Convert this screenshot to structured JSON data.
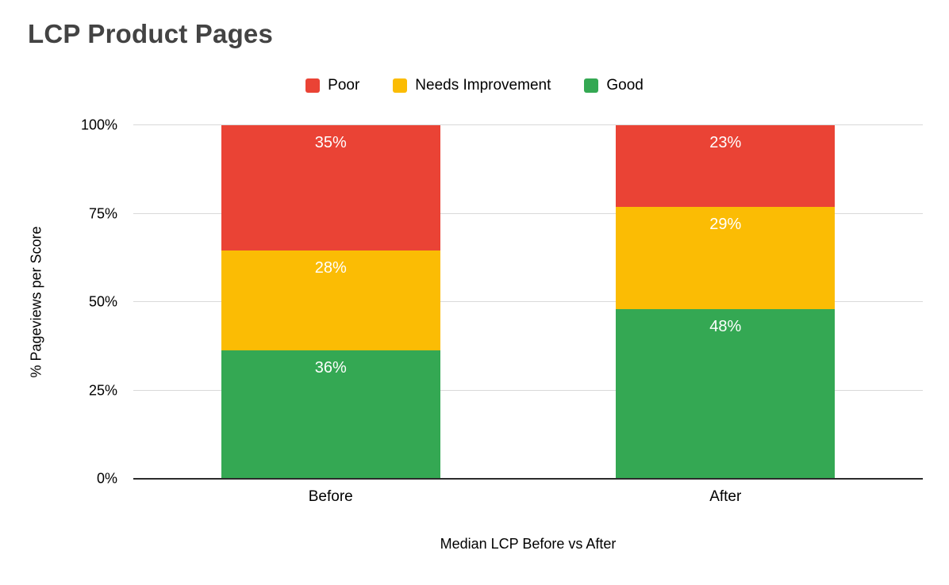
{
  "chart_data": {
    "type": "bar",
    "stacked": true,
    "title": "LCP Product Pages",
    "xlabel": "Median LCP Before vs After",
    "ylabel": "% Pageviews per Score",
    "categories": [
      "Before",
      "After"
    ],
    "series": [
      {
        "name": "Poor",
        "color": "#EA4335",
        "values": [
          35,
          23
        ]
      },
      {
        "name": "Needs Improvement",
        "color": "#FBBC04",
        "values": [
          28,
          29
        ]
      },
      {
        "name": "Good",
        "color": "#34A853",
        "values": [
          36,
          48
        ]
      }
    ],
    "value_suffix": "%",
    "ylim": [
      0,
      100
    ],
    "yticks": [
      0,
      25,
      50,
      75,
      100
    ],
    "ytick_suffix": "%",
    "grid": true,
    "legend_position": "top",
    "data_labels": true
  },
  "colors": {
    "background": "#ffffff",
    "title": "#434343",
    "gridline": "#d9d9d9",
    "axis_line": "#2b2b2b",
    "data_label": "#ffffff",
    "text": "#000000"
  }
}
